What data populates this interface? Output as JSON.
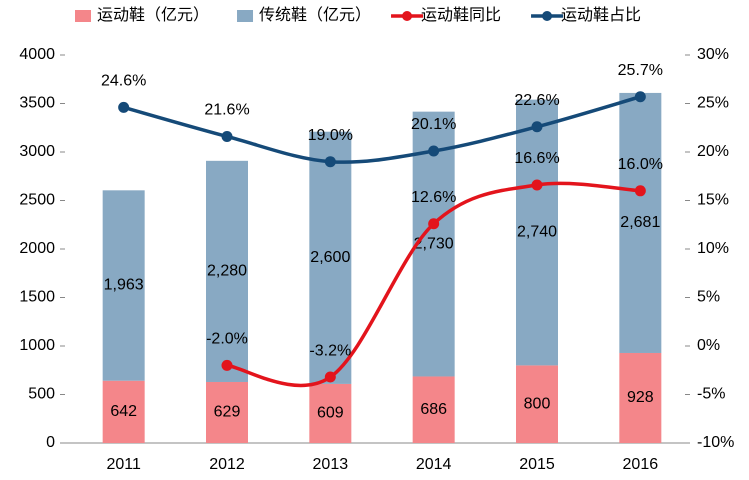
{
  "chart_data": {
    "type": "bar",
    "stacked": true,
    "categories": [
      "2011",
      "2012",
      "2013",
      "2014",
      "2015",
      "2016"
    ],
    "series": [
      {
        "name": "运动鞋（亿元）",
        "type": "bar",
        "color": "#f4868a",
        "values": [
          642,
          629,
          609,
          686,
          800,
          928
        ],
        "value_labels": [
          "642",
          "629",
          "609",
          "686",
          "800",
          "928"
        ]
      },
      {
        "name": "传统鞋（亿元）",
        "type": "bar",
        "color": "#88a9c3",
        "values": [
          1963,
          2280,
          2600,
          2730,
          2740,
          2681
        ],
        "value_labels": [
          "1,963",
          "2,280",
          "2,600",
          "2,730",
          "2,740",
          "2,681"
        ]
      },
      {
        "name": "运动鞋同比",
        "type": "line",
        "axis": "y2",
        "color": "#e3141c",
        "values": [
          null,
          -2.0,
          -3.2,
          12.6,
          16.6,
          16.0
        ],
        "value_labels": [
          null,
          "-2.0%",
          "-3.2%",
          "12.6%",
          "16.6%",
          "16.0%"
        ]
      },
      {
        "name": "运动鞋占比",
        "type": "line",
        "axis": "y2",
        "color": "#154a78",
        "values": [
          24.6,
          21.6,
          19.0,
          20.1,
          22.6,
          25.7
        ],
        "value_labels": [
          "24.6%",
          "21.6%",
          "19.0%",
          "20.1%",
          "22.6%",
          "25.7%"
        ]
      }
    ],
    "ylim": [
      0,
      4000
    ],
    "yticks": [
      0,
      500,
      1000,
      1500,
      2000,
      2500,
      3000,
      3500,
      4000
    ],
    "y2lim": [
      -10,
      30
    ],
    "y2ticks": [
      {
        "value": -10,
        "label": "-10%"
      },
      {
        "value": -5,
        "label": "-5%"
      },
      {
        "value": 0,
        "label": "0%"
      },
      {
        "value": 5,
        "label": "5%"
      },
      {
        "value": 10,
        "label": "10%"
      },
      {
        "value": 15,
        "label": "15%"
      },
      {
        "value": 20,
        "label": "20%"
      },
      {
        "value": 25,
        "label": "25%"
      },
      {
        "value": 30,
        "label": "30%"
      }
    ],
    "legend": "top",
    "grid": false
  }
}
